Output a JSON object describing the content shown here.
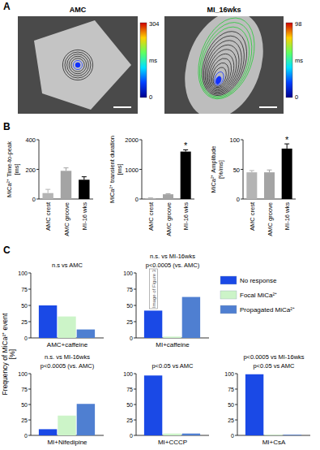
{
  "figure": {
    "panel_labels": [
      "A",
      "B",
      "C"
    ],
    "images": [
      {
        "title": "AMC",
        "colorbar": {
          "range": [
            0,
            304
          ],
          "unit": "ms"
        }
      },
      {
        "title": "MI_16wks",
        "colorbar": {
          "range": [
            0,
            98
          ],
          "unit": "ms"
        }
      }
    ],
    "c_ylabel": [
      "Frequency of MiCa²⁺ event",
      "[%]"
    ]
  },
  "chart_data": [
    {
      "type": "bar",
      "y_label": [
        "MiCa²⁺ Time-to-peak",
        "[ms]"
      ],
      "categories": [
        "AMC crest",
        "AMC groove",
        "MI-16 wks"
      ],
      "values": [
        40,
        190,
        130
      ],
      "errors": [
        25,
        20,
        20
      ],
      "colors": [
        "#b4b4b4",
        "#a4a4a4",
        "#000000"
      ],
      "ylim": [
        0,
        400
      ],
      "yticks": [
        0,
        200,
        400
      ]
    },
    {
      "type": "bar",
      "y_label": [
        "MiCa²⁺ transient duration",
        "[ms]"
      ],
      "categories": [
        "AMC crest",
        "AMC groove",
        "MI-16 wks"
      ],
      "values": [
        30,
        160,
        1600
      ],
      "errors": [
        10,
        20,
        60
      ],
      "colors": [
        "#b4b4b4",
        "#a4a4a4",
        "#000000"
      ],
      "ylim": [
        0,
        2000
      ],
      "yticks": [
        0,
        1000,
        2000
      ],
      "significance": [
        null,
        null,
        "*"
      ]
    },
    {
      "type": "bar",
      "y_label": [
        "MiCa²⁺ Amplitude",
        "[%/ms]"
      ],
      "categories": [
        "AMC crest",
        "AMC groove",
        "MI-16 wks"
      ],
      "values": [
        45,
        45,
        85
      ],
      "errors": [
        3,
        4,
        8
      ],
      "colors": [
        "#b4b4b4",
        "#a4a4a4",
        "#000000"
      ],
      "ylim": [
        0,
        100
      ],
      "yticks": [
        0,
        50,
        100
      ],
      "significance": [
        null,
        null,
        "*"
      ]
    },
    {
      "type": "bar",
      "categories": [
        "AMC+caffeine"
      ],
      "series": [
        {
          "color": "#1a49e6",
          "values": [
            50
          ]
        },
        {
          "color": "#ccf4c8",
          "values": [
            33
          ]
        },
        {
          "color": "#4f7fd1",
          "values": [
            13
          ]
        }
      ],
      "ylim": [
        0,
        100
      ],
      "yticks": [
        0,
        25,
        50,
        75,
        100
      ],
      "annotations": [
        "n.s vs AMC"
      ]
    },
    {
      "type": "bar",
      "categories": [
        "MI+caffeine"
      ],
      "series": [
        {
          "name": "No response",
          "color": "#1a49e6",
          "values": [
            42
          ]
        },
        {
          "name": "Focal MiCa²⁺",
          "color": "#ccf4c8",
          "values": [
            2
          ]
        },
        {
          "name": "Propagated MiCa²⁺",
          "color": "#4f7fd1",
          "values": [
            63
          ]
        }
      ],
      "ylim": [
        0,
        100
      ],
      "yticks": [
        0,
        25,
        50,
        75,
        100
      ],
      "annotations": [
        "n.s. vs MI-16wks",
        "p<0.0005 (vs. AMC)"
      ],
      "note": "Image of Figure 3",
      "legend": "right"
    },
    {
      "type": "bar",
      "categories": [
        "MI+Nifedipine"
      ],
      "series": [
        {
          "color": "#1a49e6",
          "values": [
            10
          ]
        },
        {
          "color": "#ccf4c8",
          "values": [
            32
          ]
        },
        {
          "color": "#4f7fd1",
          "values": [
            51
          ]
        }
      ],
      "ylim": [
        0,
        100
      ],
      "yticks": [
        0,
        25,
        50,
        75,
        100
      ],
      "annotations": [
        "n.s. vs MI-16wks",
        "p<0.0005 (vs. AMC)"
      ]
    },
    {
      "type": "bar",
      "categories": [
        "MI+CCCP"
      ],
      "series": [
        {
          "color": "#1a49e6",
          "values": [
            97
          ]
        },
        {
          "color": "#ccf4c8",
          "values": [
            3
          ]
        },
        {
          "color": "#4f7fd1",
          "values": [
            3
          ]
        }
      ],
      "ylim": [
        0,
        100
      ],
      "yticks": [
        0,
        25,
        50,
        75,
        100
      ],
      "annotations": [
        "p<0.05 vs AMC"
      ]
    },
    {
      "type": "bar",
      "categories": [
        "MI+CsA"
      ],
      "series": [
        {
          "color": "#1a49e6",
          "values": [
            99
          ]
        },
        {
          "color": "#ccf4c8",
          "values": [
            1
          ]
        },
        {
          "color": "#4f7fd1",
          "values": [
            1
          ]
        }
      ],
      "ylim": [
        0,
        100
      ],
      "yticks": [
        0,
        25,
        50,
        75,
        100
      ],
      "annotations": [
        "p<0.0005 vs MI-16wks",
        "p<0.05 vs AMC"
      ]
    }
  ]
}
